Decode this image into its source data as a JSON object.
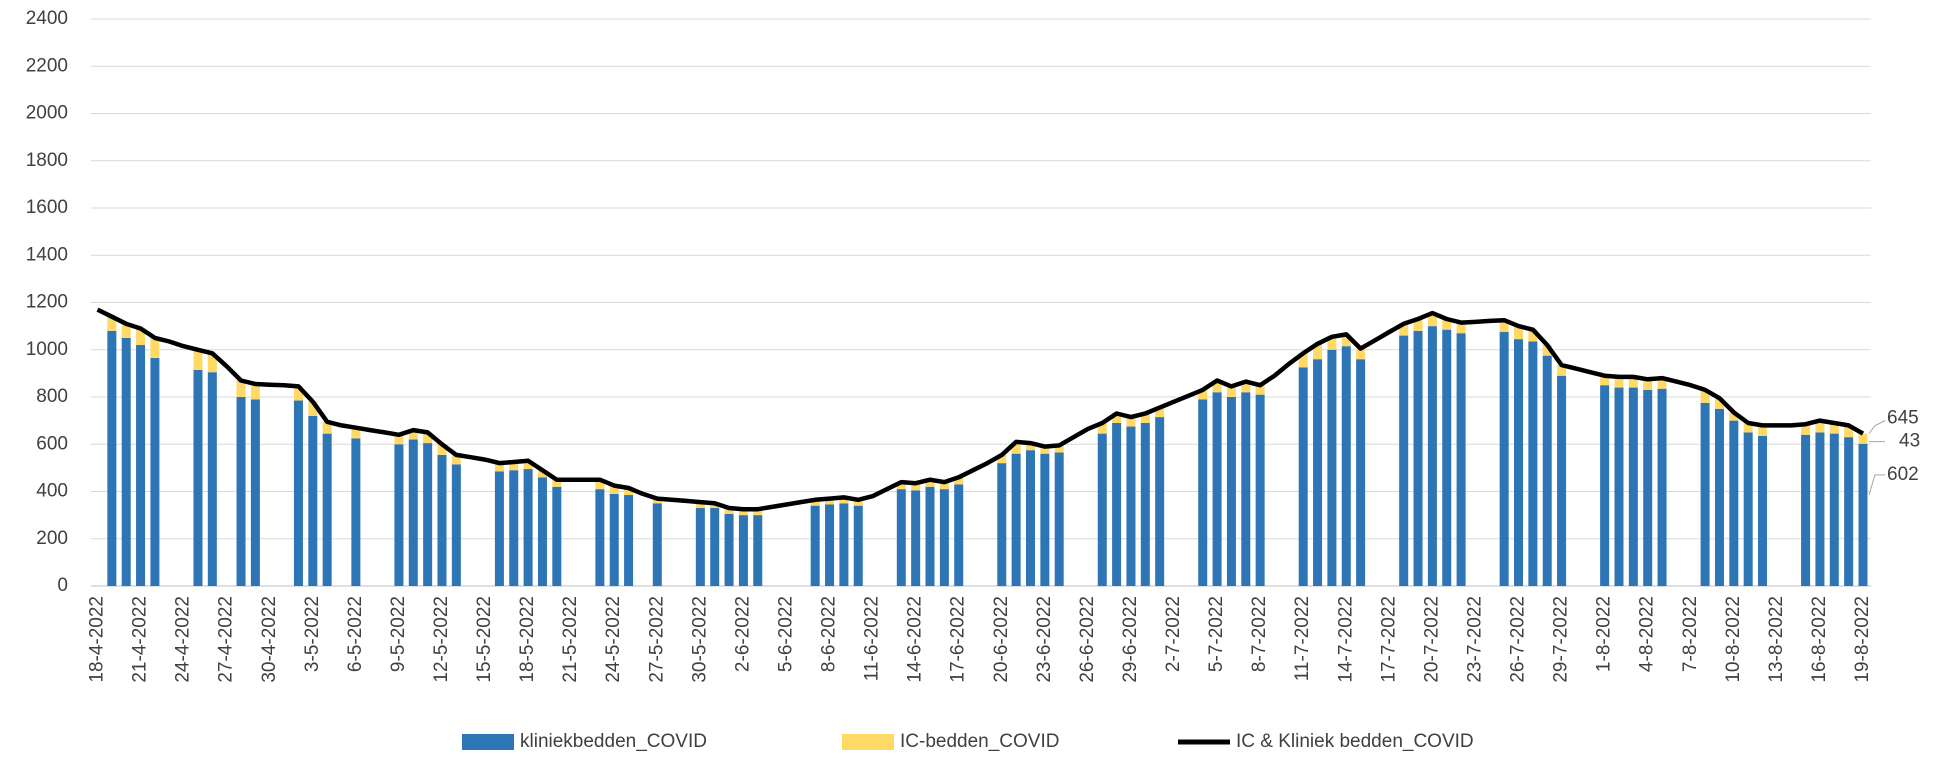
{
  "chart_data": {
    "type": "bar",
    "stacked": true,
    "grid": true,
    "legend": "bottom",
    "categories": [
      "18-4-2022",
      null,
      null,
      "21-4-2022",
      null,
      null,
      "24-4-2022",
      null,
      null,
      "27-4-2022",
      null,
      null,
      "30-4-2022",
      null,
      null,
      "3-5-2022",
      null,
      null,
      "6-5-2022",
      null,
      null,
      "9-5-2022",
      null,
      null,
      "12-5-2022",
      null,
      null,
      "15-5-2022",
      null,
      null,
      "18-5-2022",
      null,
      null,
      "21-5-2022",
      null,
      null,
      "24-5-2022",
      null,
      null,
      "27-5-2022",
      null,
      null,
      "30-5-2022",
      null,
      null,
      "2-6-2022",
      null,
      null,
      "5-6-2022",
      null,
      null,
      "8-6-2022",
      null,
      null,
      "11-6-2022",
      null,
      null,
      "14-6-2022",
      null,
      null,
      "17-6-2022",
      null,
      null,
      "20-6-2022",
      null,
      null,
      "23-6-2022",
      null,
      null,
      "26-6-2022",
      null,
      null,
      "29-6-2022",
      null,
      null,
      "2-7-2022",
      null,
      null,
      "5-7-2022",
      null,
      null,
      "8-7-2022",
      null,
      null,
      "11-7-2022",
      null,
      null,
      "14-7-2022",
      null,
      null,
      "17-7-2022",
      null,
      null,
      "20-7-2022",
      null,
      null,
      "23-7-2022",
      null,
      null,
      "26-7-2022",
      null,
      null,
      "29-7-2022",
      null,
      null,
      "1-8-2022",
      null,
      null,
      "4-8-2022",
      null,
      null,
      "7-8-2022",
      null,
      null,
      "10-8-2022",
      null,
      null,
      "13-8-2022",
      null,
      null,
      "16-8-2022",
      null,
      null,
      "19-8-2022"
    ],
    "series": [
      {
        "name": "kliniekbedden_COVID",
        "color": "#2e75b6",
        "type": "bar",
        "values": [
          null,
          1080,
          1050,
          1020,
          965,
          null,
          null,
          915,
          905,
          null,
          800,
          790,
          null,
          null,
          785,
          720,
          645,
          null,
          625,
          null,
          null,
          600,
          620,
          605,
          555,
          515,
          null,
          null,
          485,
          490,
          495,
          460,
          420,
          null,
          null,
          410,
          390,
          385,
          null,
          350,
          null,
          null,
          330,
          330,
          305,
          300,
          300,
          null,
          null,
          null,
          340,
          345,
          350,
          340,
          null,
          null,
          410,
          405,
          420,
          410,
          430,
          null,
          null,
          520,
          560,
          575,
          560,
          565,
          null,
          null,
          645,
          690,
          675,
          690,
          715,
          null,
          null,
          790,
          820,
          800,
          820,
          810,
          null,
          null,
          925,
          960,
          1000,
          1015,
          960,
          null,
          null,
          1060,
          1080,
          1100,
          1085,
          1070,
          null,
          null,
          1075,
          1045,
          1035,
          975,
          890,
          null,
          null,
          850,
          840,
          840,
          830,
          835,
          null,
          null,
          775,
          750,
          700,
          650,
          635,
          null,
          null,
          640,
          650,
          645,
          630,
          602
        ]
      },
      {
        "name": "IC-bedden_COVID",
        "color": "#ffd966",
        "type": "bar",
        "values": [
          null,
          60,
          60,
          70,
          85,
          null,
          null,
          85,
          80,
          null,
          70,
          65,
          null,
          null,
          60,
          60,
          50,
          null,
          45,
          null,
          null,
          40,
          40,
          45,
          45,
          40,
          null,
          null,
          35,
          35,
          35,
          30,
          30,
          null,
          null,
          40,
          35,
          30,
          null,
          20,
          null,
          null,
          25,
          20,
          25,
          25,
          25,
          null,
          null,
          null,
          25,
          25,
          25,
          25,
          null,
          null,
          30,
          30,
          30,
          30,
          30,
          null,
          null,
          35,
          50,
          30,
          30,
          30,
          null,
          null,
          45,
          40,
          40,
          40,
          40,
          null,
          null,
          40,
          50,
          45,
          45,
          40,
          null,
          null,
          60,
          65,
          55,
          50,
          45,
          null,
          null,
          50,
          50,
          55,
          45,
          45,
          null,
          null,
          50,
          55,
          50,
          45,
          45,
          null,
          null,
          40,
          45,
          45,
          45,
          45,
          null,
          null,
          55,
          45,
          35,
          40,
          45,
          null,
          null,
          45,
          50,
          45,
          50,
          43
        ]
      },
      {
        "name": "IC & Kliniek bedden_COVID",
        "color": "#000000",
        "type": "line",
        "values": [
          1170,
          1140,
          1110,
          1090,
          1050,
          1035,
          1015,
          1000,
          985,
          930,
          870,
          855,
          852,
          850,
          845,
          780,
          695,
          680,
          670,
          660,
          650,
          640,
          660,
          650,
          600,
          555,
          545,
          535,
          520,
          525,
          530,
          490,
          450,
          450,
          450,
          450,
          425,
          415,
          390,
          370,
          365,
          360,
          355,
          350,
          330,
          325,
          325,
          335,
          345,
          355,
          365,
          370,
          375,
          365,
          380,
          410,
          440,
          435,
          450,
          440,
          460,
          490,
          520,
          555,
          610,
          605,
          590,
          595,
          630,
          665,
          690,
          730,
          715,
          730,
          755,
          780,
          805,
          830,
          870,
          845,
          865,
          850,
          890,
          940,
          985,
          1025,
          1055,
          1065,
          1005,
          1040,
          1075,
          1110,
          1130,
          1155,
          1130,
          1115,
          1118,
          1122,
          1125,
          1100,
          1085,
          1020,
          935,
          920,
          905,
          890,
          885,
          885,
          875,
          880,
          865,
          850,
          830,
          795,
          735,
          690,
          680,
          680,
          680,
          685,
          700,
          690,
          680,
          645
        ]
      }
    ],
    "ylim": [
      0,
      2400
    ],
    "yticks": [
      0,
      200,
      400,
      600,
      800,
      1000,
      1200,
      1400,
      1600,
      1800,
      2000,
      2200,
      2400
    ]
  }
}
